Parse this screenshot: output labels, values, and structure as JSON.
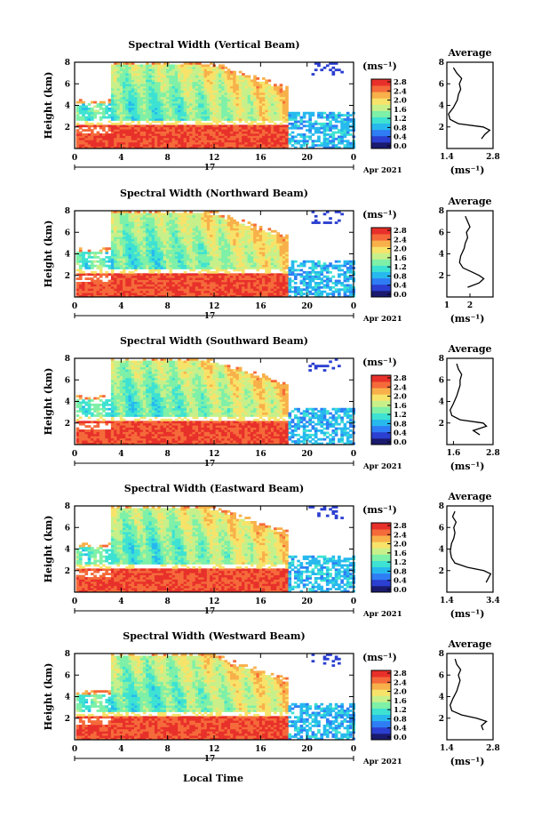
{
  "chart_data": [
    {
      "type": "heatmap",
      "beam": "vertical",
      "title": "Spectral Width (Vertical Beam)",
      "ylabel": "Height (km)",
      "yticks": [
        "2",
        "4",
        "6",
        "8"
      ],
      "ylim": [
        0,
        8
      ],
      "xticks": [
        "0",
        "4",
        "8",
        "12",
        "16",
        "20",
        "0"
      ],
      "xlim": [
        0,
        24
      ],
      "date_day": "17",
      "date_label": "Apr 2021",
      "colorbar_unit": "(ms⁻¹)",
      "colorbar_ticks": [
        "0.0",
        "0.4",
        "0.8",
        "1.2",
        "1.6",
        "2.0",
        "2.4",
        "2.8"
      ],
      "profile": {
        "title": "Average",
        "xlabel": "(ms⁻¹)",
        "xticks": [
          "1.4",
          "2.8"
        ],
        "xlim": [
          1.4,
          2.8
        ],
        "yticks": [
          "2",
          "4",
          "6",
          "8"
        ],
        "ylim": [
          0,
          8
        ],
        "heights": [
          0.9,
          1.3,
          1.7,
          2.0,
          2.3,
          2.7,
          3.2,
          3.8,
          4.5,
          5.0,
          5.5,
          6.0,
          6.5,
          7.0,
          7.5
        ],
        "values": [
          2.45,
          2.55,
          2.7,
          2.5,
          1.75,
          1.5,
          1.45,
          1.6,
          1.72,
          1.75,
          1.82,
          1.78,
          1.85,
          1.7,
          1.6
        ]
      }
    },
    {
      "type": "heatmap",
      "beam": "northward",
      "title": "Spectral Width (Northward Beam)",
      "ylabel": "Height (km)",
      "yticks": [
        "2",
        "4",
        "6",
        "8"
      ],
      "ylim": [
        0,
        8
      ],
      "xticks": [
        "0",
        "4",
        "8",
        "12",
        "16",
        "20",
        "0"
      ],
      "xlim": [
        0,
        24
      ],
      "date_day": "17",
      "date_label": "Apr 2021",
      "colorbar_unit": "(ms⁻¹)",
      "colorbar_ticks": [
        "0.0",
        "0.4",
        "0.8",
        "1.2",
        "1.6",
        "2.0",
        "2.4",
        "2.8"
      ],
      "profile": {
        "title": "Average",
        "xlabel": "(ms⁻¹)",
        "xticks": [
          "1",
          "2"
        ],
        "xlim": [
          1,
          3
        ],
        "yticks": [
          "2",
          "4",
          "6",
          "8"
        ],
        "ylim": [
          0,
          8
        ],
        "heights": [
          0.9,
          1.3,
          1.7,
          2.0,
          2.3,
          2.7,
          3.2,
          3.8,
          4.5,
          5.0,
          5.5,
          6.0,
          6.5,
          7.0,
          7.5
        ],
        "values": [
          1.9,
          2.4,
          2.6,
          2.4,
          2.1,
          1.7,
          1.55,
          1.6,
          1.75,
          1.8,
          1.9,
          1.85,
          2.0,
          1.9,
          1.8
        ]
      }
    },
    {
      "type": "heatmap",
      "beam": "southward",
      "title": "Spectral Width (Southward Beam)",
      "ylabel": "Height (km)",
      "yticks": [
        "2",
        "4",
        "6",
        "8"
      ],
      "ylim": [
        0,
        8
      ],
      "xticks": [
        "0",
        "4",
        "8",
        "12",
        "16",
        "20",
        "0"
      ],
      "xlim": [
        0,
        24
      ],
      "date_day": "17",
      "date_label": "Apr 2021",
      "colorbar_unit": "(ms⁻¹)",
      "colorbar_ticks": [
        "0.0",
        "0.4",
        "0.8",
        "1.2",
        "1.6",
        "2.0",
        "2.4",
        "2.8"
      ],
      "profile": {
        "title": "Average",
        "xlabel": "(ms⁻¹)",
        "xticks": [
          "1.6",
          "2.8"
        ],
        "xlim": [
          1.4,
          2.8
        ],
        "yticks": [
          "2",
          "4",
          "6",
          "8"
        ],
        "ylim": [
          0,
          8
        ],
        "heights": [
          0.9,
          1.3,
          1.7,
          2.0,
          2.3,
          2.7,
          3.2,
          3.8,
          4.5,
          5.0,
          5.5,
          6.0,
          6.5,
          7.0,
          7.5
        ],
        "values": [
          2.4,
          2.2,
          2.6,
          2.5,
          1.8,
          1.55,
          1.5,
          1.6,
          1.7,
          1.75,
          1.8,
          1.8,
          1.85,
          1.75,
          1.7
        ]
      }
    },
    {
      "type": "heatmap",
      "beam": "eastward",
      "title": "Spectral Width (Eastward Beam)",
      "ylabel": "Height (km)",
      "yticks": [
        "2",
        "4",
        "6",
        "8"
      ],
      "ylim": [
        0,
        8
      ],
      "xticks": [
        "0",
        "4",
        "8",
        "12",
        "16",
        "20",
        "0"
      ],
      "xlim": [
        0,
        24
      ],
      "date_day": "17",
      "date_label": "Apr 2021",
      "colorbar_unit": "(ms⁻¹)",
      "colorbar_ticks": [
        "0.0",
        "0.4",
        "0.8",
        "1.2",
        "1.6",
        "2.0",
        "2.4",
        "2.8"
      ],
      "profile": {
        "title": "Average",
        "xlabel": "(ms⁻¹)",
        "xticks": [
          "1.4",
          "3.4"
        ],
        "xlim": [
          1.4,
          3.4
        ],
        "yticks": [
          "2",
          "4",
          "6",
          "8"
        ],
        "ylim": [
          0,
          8
        ],
        "heights": [
          0.9,
          1.3,
          1.7,
          2.0,
          2.3,
          2.7,
          3.2,
          3.8,
          4.5,
          5.0,
          5.5,
          6.0,
          6.5,
          7.0,
          7.5
        ],
        "values": [
          3.1,
          3.2,
          3.3,
          3.0,
          2.3,
          1.75,
          1.6,
          1.55,
          1.6,
          1.7,
          1.75,
          1.7,
          1.8,
          1.65,
          1.75
        ]
      }
    },
    {
      "type": "heatmap",
      "beam": "westward",
      "title": "Spectral Width (Westward Beam)",
      "ylabel": "Height (km)",
      "yticks": [
        "2",
        "4",
        "6",
        "8"
      ],
      "ylim": [
        0,
        8
      ],
      "xticks": [
        "0",
        "4",
        "8",
        "12",
        "16",
        "20",
        "0"
      ],
      "xlim": [
        0,
        24
      ],
      "date_day": "17",
      "date_label": "Apr 2021",
      "colorbar_unit": "(ms⁻¹)",
      "colorbar_ticks": [
        "0.0",
        "0.4",
        "0.8",
        "1.2",
        "1.6",
        "2.0",
        "2.4",
        "2.8"
      ],
      "profile": {
        "title": "Average",
        "xlabel": "(ms⁻¹)",
        "xticks": [
          "1.4",
          "2.8"
        ],
        "xlim": [
          1.4,
          2.8
        ],
        "yticks": [
          "2",
          "4",
          "6",
          "8"
        ],
        "ylim": [
          0,
          8
        ],
        "heights": [
          0.9,
          1.3,
          1.7,
          2.0,
          2.3,
          2.7,
          3.2,
          3.8,
          4.5,
          5.0,
          5.5,
          6.0,
          6.5,
          7.0,
          7.5
        ],
        "values": [
          2.5,
          2.45,
          2.6,
          2.3,
          1.85,
          1.55,
          1.5,
          1.58,
          1.7,
          1.75,
          1.8,
          1.75,
          1.82,
          1.7,
          1.65
        ]
      }
    }
  ],
  "xlabel": "Local Time",
  "colormap": [
    "#1a1a6e",
    "#2b3fd0",
    "#2f7df5",
    "#27b9ee",
    "#3ee2d2",
    "#7ef0a8",
    "#c8f08a",
    "#f7e36a",
    "#f8b04a",
    "#f56a3a",
    "#e8302a"
  ]
}
